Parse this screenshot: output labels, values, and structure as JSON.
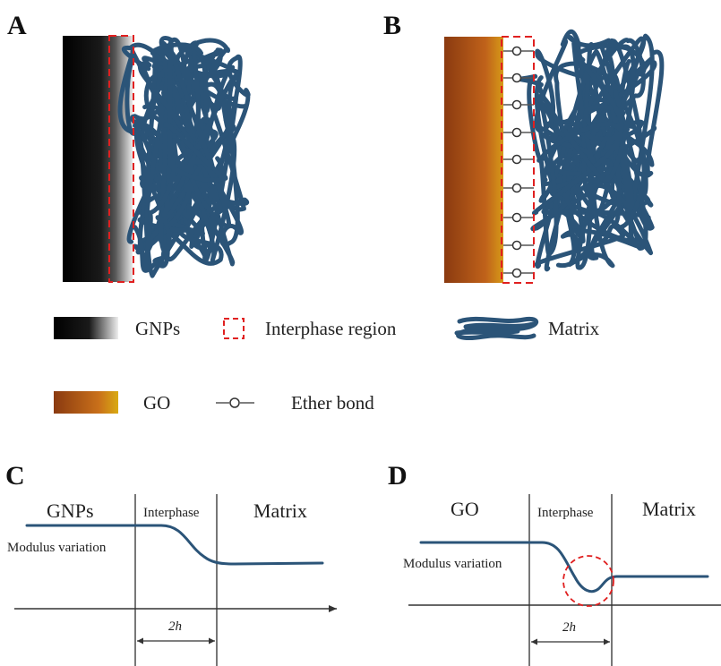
{
  "panels": {
    "a": {
      "letter": "A"
    },
    "b": {
      "letter": "B"
    },
    "c": {
      "letter": "C",
      "left_label": "GNPs",
      "middle_label": "Interphase",
      "right_label": "Matrix",
      "curve_label": "Modulus variation",
      "width_label": "2h"
    },
    "d": {
      "letter": "D",
      "left_label": "GO",
      "middle_label": "Interphase",
      "right_label": "Matrix",
      "curve_label": "Modulus variation",
      "width_label": "2h"
    }
  },
  "legend": {
    "gnps": "GNPs",
    "interphase": "Interphase region",
    "matrix": "Matrix",
    "go": "GO",
    "ether": "Ether bond"
  },
  "colors": {
    "matrix": "#2b5478",
    "interphase_box": "#e02020",
    "gnp_dark": "#000000",
    "gnp_light": "#e6e6e6",
    "go_dark": "#8a3a10",
    "go_light": "#d9a010",
    "curve": "#2b5478",
    "lines": "#555555"
  }
}
